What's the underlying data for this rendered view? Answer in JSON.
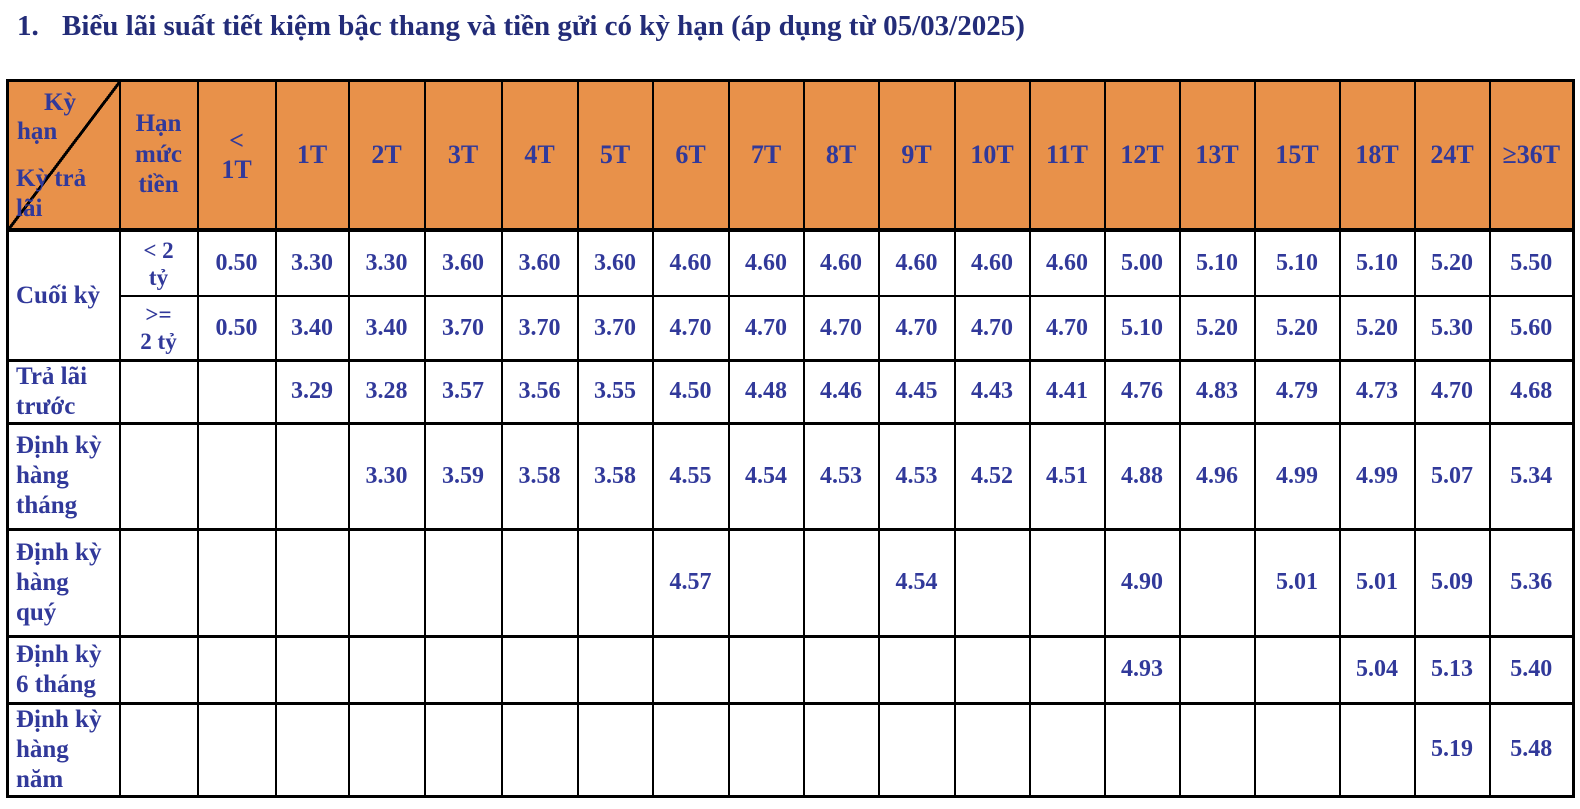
{
  "title": {
    "number": "1.",
    "text": "Biểu lãi suất tiết kiệm bậc thang và tiền gửi có kỳ hạn (áp dụng từ 05/03/2025)"
  },
  "colors": {
    "header_bg": "#E8914A",
    "title_text": "#232C78",
    "table_text": "#31399A",
    "border": "#000000"
  },
  "table": {
    "corner_top": "Kỳ\nhạn",
    "corner_bottom": "Kỳ trả\nlãi",
    "limit_header": "Hạn\nmức\ntiền",
    "term_headers": [
      "<\n1T",
      "1T",
      "2T",
      "3T",
      "4T",
      "5T",
      "6T",
      "7T",
      "8T",
      "9T",
      "10T",
      "11T",
      "12T",
      "13T",
      "15T",
      "18T",
      "24T",
      "≥36T"
    ],
    "rows": [
      {
        "key": "cuoi-ky-duoi-2-ty",
        "label": "Cuối kỳ",
        "label_rowspan": 2,
        "limit": "< 2\ntỷ",
        "values": [
          "0.50",
          "3.30",
          "3.30",
          "3.60",
          "3.60",
          "3.60",
          "4.60",
          "4.60",
          "4.60",
          "4.60",
          "4.60",
          "4.60",
          "5.00",
          "5.10",
          "5.10",
          "5.10",
          "5.20",
          "5.50"
        ]
      },
      {
        "key": "cuoi-ky-tren-2-ty",
        "label": null,
        "limit": ">=\n2 tỷ",
        "values": [
          "0.50",
          "3.40",
          "3.40",
          "3.70",
          "3.70",
          "3.70",
          "4.70",
          "4.70",
          "4.70",
          "4.70",
          "4.70",
          "4.70",
          "5.10",
          "5.20",
          "5.20",
          "5.20",
          "5.30",
          "5.60"
        ]
      },
      {
        "key": "tra-lai-truoc",
        "label": "Trả lãi\ntrước",
        "limit": "",
        "values": [
          "",
          "3.29",
          "3.28",
          "3.57",
          "3.56",
          "3.55",
          "4.50",
          "4.48",
          "4.46",
          "4.45",
          "4.43",
          "4.41",
          "4.76",
          "4.83",
          "4.79",
          "4.73",
          "4.70",
          "4.68"
        ]
      },
      {
        "key": "dinh-ky-hang-thang",
        "label": "Định kỳ\nhàng\ntháng",
        "limit": "",
        "values": [
          "",
          "",
          "3.30",
          "3.59",
          "3.58",
          "3.58",
          "4.55",
          "4.54",
          "4.53",
          "4.53",
          "4.52",
          "4.51",
          "4.88",
          "4.96",
          "4.99",
          "4.99",
          "5.07",
          "5.34"
        ]
      },
      {
        "key": "dinh-ky-hang-quy",
        "label": "Định kỳ\nhàng\nquý",
        "limit": "",
        "values": [
          "",
          "",
          "",
          "",
          "",
          "",
          "4.57",
          "",
          "",
          "4.54",
          "",
          "",
          "4.90",
          "",
          "5.01",
          "5.01",
          "5.09",
          "5.36"
        ]
      },
      {
        "key": "dinh-ky-6-thang",
        "label": "Định kỳ\n6 tháng",
        "limit": "",
        "values": [
          "",
          "",
          "",
          "",
          "",
          "",
          "",
          "",
          "",
          "",
          "",
          "",
          "4.93",
          "",
          "",
          "5.04",
          "5.13",
          "5.40"
        ]
      },
      {
        "key": "dinh-ky-hang-nam",
        "label": "Định kỳ\nhàng\nnăm",
        "limit": "",
        "values": [
          "",
          "",
          "",
          "",
          "",
          "",
          "",
          "",
          "",
          "",
          "",
          "",
          "",
          "",
          "",
          "",
          "5.19",
          "5.48"
        ]
      }
    ]
  }
}
